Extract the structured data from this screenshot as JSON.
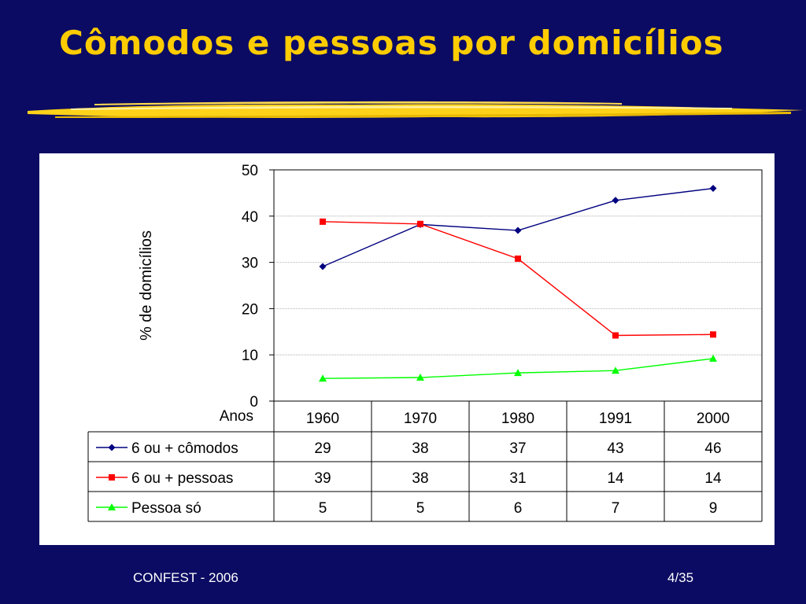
{
  "slide": {
    "title": "Cômodos e pessoas por domicílios",
    "footer_left": "CONFEST - 2006",
    "footer_right": "4/35"
  },
  "colors": {
    "background": "#0b0b63",
    "title": "#ffcc00",
    "brush": "#ffd21a"
  },
  "chart_data": {
    "type": "line",
    "ylabel": "% de domicílios",
    "xlabel": "Anos",
    "categories": [
      "1960",
      "1970",
      "1980",
      "1991",
      "2000"
    ],
    "ylim": [
      0,
      50
    ],
    "yticks": [
      0,
      10,
      20,
      30,
      40,
      50
    ],
    "grid": true,
    "series": [
      {
        "name": "6 ou + cômodos",
        "color": "#000080",
        "marker": "diamond",
        "values": [
          29,
          38,
          37,
          43,
          46
        ],
        "plot_values": [
          29.1,
          38.2,
          36.9,
          43.4,
          46.0
        ]
      },
      {
        "name": "6 ou + pessoas",
        "color": "#ff0000",
        "marker": "square",
        "values": [
          39,
          38,
          31,
          14,
          14
        ],
        "plot_values": [
          38.8,
          38.3,
          30.8,
          14.2,
          14.4
        ]
      },
      {
        "name": "Pessoa só",
        "color": "#00ff00",
        "marker": "triangle",
        "values": [
          5,
          5,
          6,
          7,
          9
        ],
        "plot_values": [
          4.9,
          5.1,
          6.1,
          6.6,
          9.2
        ]
      }
    ]
  }
}
